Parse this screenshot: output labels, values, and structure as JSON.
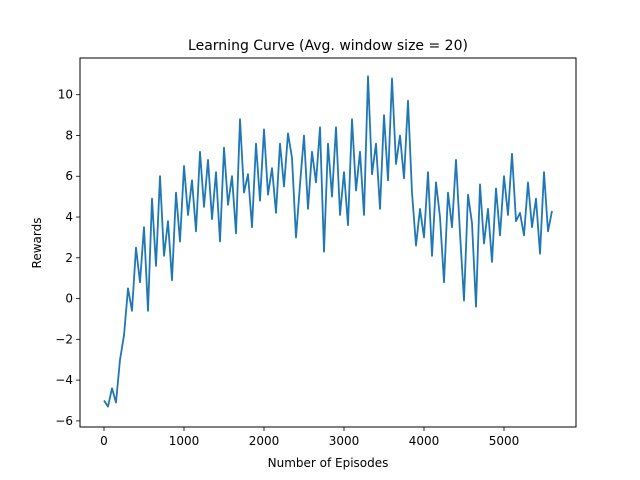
{
  "chart_data": {
    "type": "line",
    "title": "Learning Curve (Avg. window size = 20)",
    "xlabel": "Number of Episodes",
    "ylabel": "Rewards",
    "xlim": [
      -300,
      5900
    ],
    "ylim": [
      -6.3,
      11.8
    ],
    "xticks": [
      0,
      1000,
      2000,
      3000,
      4000,
      5000
    ],
    "yticks": [
      -6,
      -4,
      -2,
      0,
      2,
      4,
      6,
      8,
      10
    ],
    "grid": false,
    "legend": "none",
    "color": "#1f77b4",
    "series": [
      {
        "x": [
          0,
          50,
          100,
          150,
          200,
          250,
          300,
          350,
          400,
          450,
          500,
          550,
          600,
          650,
          700,
          750,
          800,
          850,
          900,
          950,
          1000,
          1050,
          1100,
          1150,
          1200,
          1250,
          1300,
          1350,
          1400,
          1450,
          1500,
          1550,
          1600,
          1650,
          1700,
          1750,
          1800,
          1850,
          1900,
          1950,
          2000,
          2050,
          2100,
          2150,
          2200,
          2250,
          2300,
          2350,
          2400,
          2450,
          2500,
          2550,
          2600,
          2650,
          2700,
          2750,
          2800,
          2850,
          2900,
          2950,
          3000,
          3050,
          3100,
          3150,
          3200,
          3250,
          3300,
          3350,
          3400,
          3450,
          3500,
          3550,
          3600,
          3650,
          3700,
          3750,
          3800,
          3850,
          3900,
          3950,
          4000,
          4050,
          4100,
          4150,
          4200,
          4250,
          4300,
          4350,
          4400,
          4450,
          4500,
          4550,
          4600,
          4650,
          4700,
          4750,
          4800,
          4850,
          4900,
          4950,
          5000,
          5050,
          5100,
          5150,
          5200,
          5250,
          5300,
          5350,
          5400,
          5450,
          5500,
          5550,
          5600
        ],
        "values": [
          -5.0,
          -5.3,
          -4.4,
          -5.1,
          -3.0,
          -1.8,
          0.5,
          -0.6,
          2.5,
          0.8,
          3.5,
          -0.6,
          4.9,
          1.6,
          6.0,
          2.1,
          3.8,
          0.9,
          5.2,
          2.8,
          6.5,
          4.1,
          5.8,
          3.3,
          7.2,
          4.5,
          6.8,
          3.9,
          6.2,
          2.8,
          7.4,
          4.6,
          6.0,
          3.2,
          8.8,
          5.2,
          6.1,
          3.5,
          7.6,
          4.8,
          8.3,
          5.1,
          6.4,
          4.2,
          7.6,
          5.5,
          8.1,
          6.9,
          3.0,
          5.6,
          8.0,
          4.4,
          7.2,
          5.7,
          8.4,
          2.3,
          7.6,
          5.0,
          8.4,
          4.1,
          6.2,
          3.6,
          8.8,
          5.3,
          7.2,
          4.1,
          10.9,
          6.1,
          7.6,
          4.4,
          9.0,
          5.8,
          10.8,
          6.6,
          8.0,
          5.9,
          9.7,
          5.2,
          2.6,
          4.4,
          3.0,
          6.2,
          2.1,
          5.7,
          4.0,
          0.8,
          5.2,
          3.5,
          6.8,
          3.2,
          -0.1,
          5.1,
          3.7,
          -0.4,
          5.6,
          2.7,
          4.4,
          1.8,
          5.4,
          3.1,
          6.0,
          4.1,
          7.1,
          3.8,
          4.2,
          3.1,
          5.7,
          3.5,
          4.9,
          2.2,
          6.2,
          3.3,
          4.3
        ]
      }
    ]
  }
}
